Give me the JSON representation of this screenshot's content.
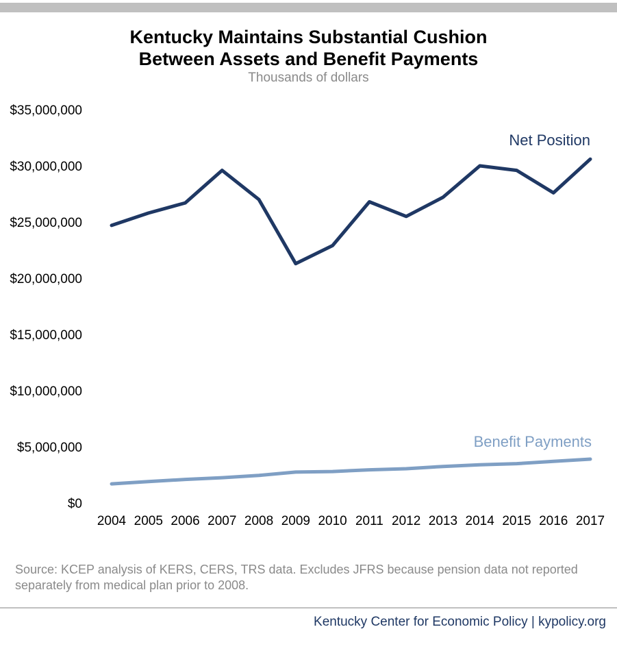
{
  "header": {
    "title_line1": "Kentucky Maintains Substantial Cushion",
    "title_line2": "Between Assets and Benefit Payments",
    "subtitle": "Thousands of dollars"
  },
  "chart_data": {
    "type": "line",
    "x": [
      "2004",
      "2005",
      "2006",
      "2007",
      "2008",
      "2009",
      "2010",
      "2011",
      "2012",
      "2013",
      "2014",
      "2015",
      "2016",
      "2017"
    ],
    "ylim": [
      0,
      35000000
    ],
    "yticks": [
      0,
      5000000,
      10000000,
      15000000,
      20000000,
      25000000,
      30000000,
      35000000
    ],
    "ytick_labels": [
      "$0",
      "$5,000,000",
      "$10,000,000",
      "$15,000,000",
      "$20,000,000",
      "$25,000,000",
      "$30,000,000",
      "$35,000,000"
    ],
    "grid": false,
    "series": [
      {
        "name": "Net Position",
        "color": "#1f3864",
        "values": [
          24700000,
          25800000,
          26700000,
          29600000,
          27000000,
          21300000,
          22900000,
          26800000,
          25500000,
          27200000,
          30000000,
          29600000,
          27600000,
          30600000
        ]
      },
      {
        "name": "Benefit Payments",
        "color": "#7f9fc4",
        "values": [
          1700000,
          1900000,
          2100000,
          2250000,
          2450000,
          2750000,
          2800000,
          2950000,
          3050000,
          3250000,
          3400000,
          3500000,
          3700000,
          3900000
        ]
      }
    ]
  },
  "source_note": "Source: KCEP analysis of KERS, CERS, TRS data. Excludes JFRS because pension data not reported separately from medical plan prior to 2008.",
  "footer": "Kentucky Center for Economic Policy | kypolicy.org"
}
